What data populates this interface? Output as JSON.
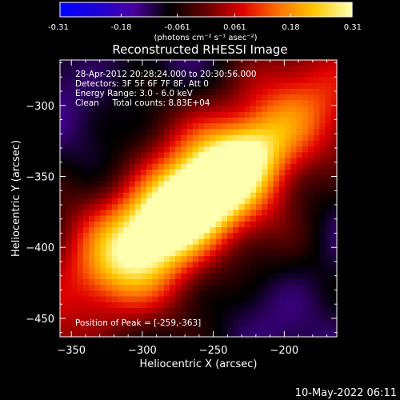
{
  "chart_data": {
    "type": "heatmap",
    "title": "Reconstructed RHESSI Image",
    "xlabel": "Heliocentric X (arcsec)",
    "ylabel": "Heliocentric Y (arcsec)",
    "xlim": [
      -358,
      -163
    ],
    "ylim": [
      -463,
      -268
    ],
    "x_ticks": [
      -350,
      -300,
      -250,
      -200
    ],
    "y_ticks": [
      -450,
      -400,
      -350,
      -300
    ],
    "colorbar": {
      "range": [
        -0.31,
        0.31
      ],
      "ticks": [
        -0.31,
        -0.18,
        -0.061,
        0.061,
        0.18,
        0.31
      ],
      "tick_labels": [
        "-0.31",
        "-0.18",
        "-0.061",
        "0.061",
        "0.18",
        "0.31"
      ],
      "units": "(photons cm⁻² s⁻¹ asec⁻²)",
      "colors": [
        "#0000ff",
        "#1c00d8",
        "#4a00a0",
        "#000000",
        "#650000",
        "#e00000",
        "#ff7000",
        "#ffc800",
        "#ffffb0"
      ]
    },
    "annotations": [
      "28-Apr-2012 20:28:24.000 to 20:30:56.000",
      "Detectors: 3F 5F 6F 7F 8F, Att 0",
      "Energy Range: 3.0 - 6.0 keV",
      "Clean     Total counts: 8.83E+04",
      "Position of Peak = [-259,-363]"
    ],
    "peak": {
      "x": -259,
      "y": -363,
      "value": 0.31
    },
    "source_axis_angle_deg": 40
  },
  "footer": {
    "timestamp": "10-May-2022 06:11"
  }
}
